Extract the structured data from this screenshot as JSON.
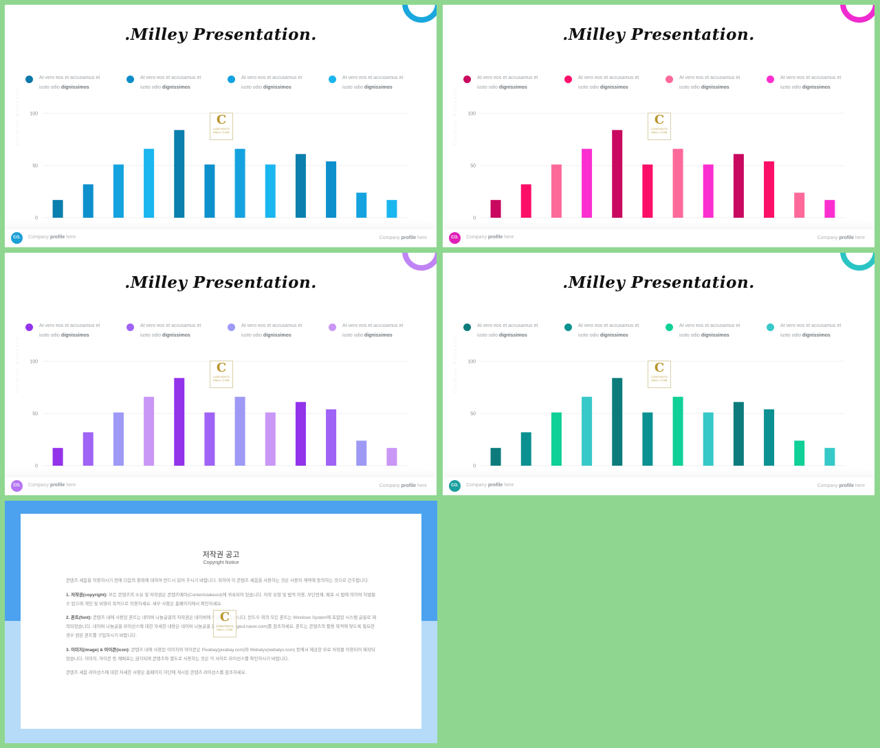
{
  "slide_title": ".Milley Presentation.",
  "legend_text_line1": "At vero eos et accusamus et",
  "legend_text_line2_prefix": "iusto odio",
  "legend_text_line2_bold": "dignissimos",
  "footer_left_prefix": "Company",
  "footer_left_bold": "profile",
  "footer_left_suffix": "here",
  "footer_right_prefix": "Company",
  "footer_right_bold": "profile",
  "footer_right_suffix": "here",
  "logo_text": "CO.",
  "side_text": "Creative Business",
  "watermark": {
    "letter": "C",
    "line1": "CONTENTS",
    "line2": "MALL.COM"
  },
  "themes": [
    {
      "ring": "#1aa7de",
      "logo": "#1a9fd6",
      "legend_colors": [
        "#0b78a8",
        "#0d8dc8",
        "#13a2df",
        "#1ab5ee"
      ],
      "bar_colors": [
        "#0b7fad",
        "#0d90cc",
        "#14a3df",
        "#1ab6ef",
        "#0b7fad",
        "#0d90cc",
        "#14a3df",
        "#1ab6ef",
        "#0b7fad",
        "#0d90cc",
        "#14a3df",
        "#1ab6ef"
      ]
    },
    {
      "ring": "#f02bcf",
      "logo": "#e020b8",
      "legend_colors": [
        "#c9085f",
        "#fd0f68",
        "#fd6a9a",
        "#fb2fd0"
      ],
      "bar_colors": [
        "#c9085f",
        "#fd0f68",
        "#fd6a9a",
        "#fb2fd0",
        "#c9085f",
        "#fd0f68",
        "#fd6a9a",
        "#fb2fd0",
        "#c9085f",
        "#fd0f68",
        "#fd6a9a",
        "#fb2fd0"
      ]
    },
    {
      "ring": "#c084f5",
      "logo": "#b574f2",
      "legend_colors": [
        "#9333ea",
        "#9f63f5",
        "#9d99f5",
        "#c997f5"
      ],
      "bar_colors": [
        "#9333ea",
        "#9f63f5",
        "#9d99f5",
        "#c997f5",
        "#9333ea",
        "#9f63f5",
        "#9d99f5",
        "#c997f5",
        "#9333ea",
        "#9f63f5",
        "#9d99f5",
        "#c997f5"
      ]
    },
    {
      "ring": "#2bc4c4",
      "logo": "#1a9e9e",
      "legend_colors": [
        "#0d7b7b",
        "#0b9191",
        "#0fd096",
        "#37c8c8"
      ],
      "bar_colors": [
        "#0d7b7b",
        "#0b9191",
        "#0fd096",
        "#37c8c8",
        "#0d7b7b",
        "#0b9191",
        "#0fd096",
        "#37c8c8",
        "#0d7b7b",
        "#0b9191",
        "#0fd096",
        "#37c8c8"
      ]
    }
  ],
  "chart_data": [
    {
      "type": "bar",
      "categories": [
        "",
        "",
        "",
        "",
        "",
        "",
        "",
        "",
        "",
        "",
        "",
        ""
      ],
      "values": [
        17,
        32,
        51,
        66,
        84,
        51,
        66,
        51,
        61,
        54,
        24,
        17
      ],
      "ylim": [
        0,
        100
      ],
      "yticks": [
        "0",
        "50",
        "100"
      ],
      "grid": true,
      "legend": "top"
    },
    {
      "type": "bar",
      "categories": [
        "",
        "",
        "",
        "",
        "",
        "",
        "",
        "",
        "",
        "",
        "",
        ""
      ],
      "values": [
        17,
        32,
        51,
        66,
        84,
        51,
        66,
        51,
        61,
        54,
        24,
        17
      ],
      "ylim": [
        0,
        100
      ],
      "yticks": [
        "0",
        "50",
        "100"
      ],
      "grid": true,
      "legend": "top"
    },
    {
      "type": "bar",
      "categories": [
        "",
        "",
        "",
        "",
        "",
        "",
        "",
        "",
        "",
        "",
        "",
        ""
      ],
      "values": [
        17,
        32,
        51,
        66,
        84,
        51,
        66,
        51,
        61,
        54,
        24,
        17
      ],
      "ylim": [
        0,
        100
      ],
      "yticks": [
        "0",
        "50",
        "100"
      ],
      "grid": true,
      "legend": "top"
    },
    {
      "type": "bar",
      "categories": [
        "",
        "",
        "",
        "",
        "",
        "",
        "",
        "",
        "",
        "",
        "",
        ""
      ],
      "values": [
        17,
        32,
        51,
        66,
        84,
        51,
        66,
        51,
        61,
        54,
        24,
        17
      ],
      "ylim": [
        0,
        100
      ],
      "yticks": [
        "0",
        "50",
        "100"
      ],
      "grid": true,
      "legend": "top"
    }
  ],
  "copyright": {
    "title": "저작권 공고",
    "subtitle": "Copyright Notice",
    "intro": "콘텐츠 세움을 이용하시기 전에 다음의 항목에 대하여 반드시 읽어 주시기 바랍니다. 위하여 이 콘텐츠 세움을 사용하는 것은 사용자 계약에 동의하는 것으로 간주됩니다.",
    "p1_label": "1. 저작권(copyright):",
    "p1": "모든 콘텐츠의 소유 및 저작권은 콘텐츠메이(Contentstakeout)에 귀속되어 있습니다. 저작 유형 및 법적 이용, 무단전재, 배포 시 법에 의하여 처벌될 수 있으며 개인 및 비영리 목적으로 이용하세요. 세부 사항은 홈페이지에서 확인하세요.",
    "p2_label": "2. 폰트(font):",
    "p2": "콘텐츠 내에 사용된 폰트는 네이버 나눔글꼴의 저작권은 네이버에 귀속되어 있습니다. 윈도우 외의 모든 폰트는 Windows System에 포함된 시스템 글꼴로 제작되었습니다. 네이버 나눔글꼴 라이선스에 대한 자세한 내용은 네이버 나눔글꼴 홈페이지(hangeul.naver.com)를 참조하세요. 폰트는 콘텐츠의 활용 목적에 맞도록 필요한 경우 원본 폰트를 구입하시기 바랍니다.",
    "p3_label": "3. 이미지(image) & 아이콘(icon):",
    "p3": "콘텐츠 내에 사용된 이미지와 아이콘은 Pixabay(pixabay.com)와 Webalys(webalys.com) 등에서 제공한 무료 저작물 이용되어 제작되었습니다. 이미지, 아이콘 등 재배포는 금지되며 콘텐츠와 별도로 사용하는 것은 각 사이트 라이선스를 확인하시기 바랍니다.",
    "outro": "콘텐츠 세움 라이선스에 대한 자세한 사항은 홈페이지 하단에 게시된 콘텐츠 라이선스를 참조하세요."
  }
}
